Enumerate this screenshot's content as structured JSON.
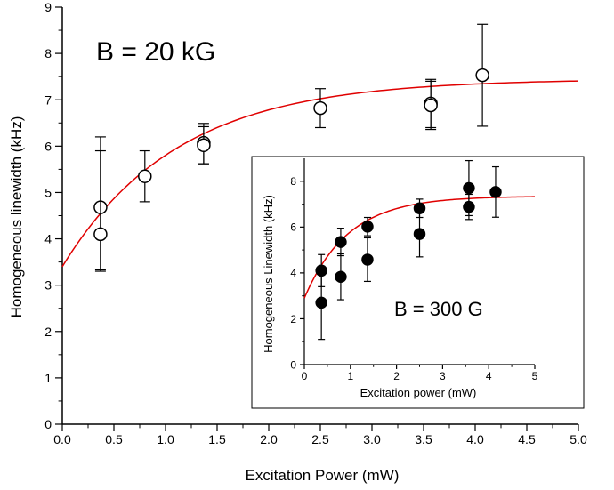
{
  "chart_data": [
    {
      "type": "scatter",
      "xlabel": "Excitation Power (mW)",
      "ylabel": "Homogeneous linewidth (kHz)",
      "xlim": [
        0,
        5
      ],
      "ylim": [
        0,
        9
      ],
      "xticks": [
        "0.0",
        "0.5",
        "1.0",
        "1.5",
        "2.0",
        "2.5",
        "3.0",
        "3.5",
        "4.0",
        "4.5",
        "5.0"
      ],
      "yticks": [
        "0",
        "1",
        "2",
        "3",
        "4",
        "5",
        "6",
        "7",
        "8",
        "9"
      ],
      "annotation": "B = 20 kG",
      "marker": "open-circle",
      "points": [
        {
          "x": 0.37,
          "y": 4.68,
          "err_low": 1.35,
          "err_high": 1.52
        },
        {
          "x": 0.37,
          "y": 4.1,
          "err_low": 0.8,
          "err_high": 1.8
        },
        {
          "x": 0.8,
          "y": 5.35,
          "err_low": 0.55,
          "err_high": 0.55
        },
        {
          "x": 1.37,
          "y": 6.07,
          "err_low": 0.45,
          "err_high": 0.42
        },
        {
          "x": 1.37,
          "y": 6.02,
          "err_low": 0.4,
          "err_high": 0.4
        },
        {
          "x": 2.5,
          "y": 6.82,
          "err_low": 0.42,
          "err_high": 0.42
        },
        {
          "x": 3.57,
          "y": 6.92,
          "err_low": 0.52,
          "err_high": 0.52
        },
        {
          "x": 3.57,
          "y": 6.88,
          "err_low": 0.52,
          "err_high": 0.52
        },
        {
          "x": 4.07,
          "y": 7.53,
          "err_low": 1.1,
          "err_high": 1.1
        }
      ],
      "fit": {
        "color": "#e00000",
        "x_range": [
          0,
          5
        ],
        "y0": 3.4,
        "yinf": 7.45,
        "rate": 0.9
      }
    },
    {
      "type": "scatter",
      "xlabel": "Excitation power (mW)",
      "ylabel": "Homogeneous Linewidth (kHz)",
      "xlim": [
        0,
        5
      ],
      "ylim": [
        0,
        9
      ],
      "xticks": [
        "0",
        "1",
        "2",
        "3",
        "4",
        "5"
      ],
      "yticks": [
        "0",
        "2",
        "4",
        "6",
        "8"
      ],
      "annotation": "B = 300 G",
      "marker": "filled-circle",
      "points": [
        {
          "x": 0.37,
          "y": 4.1,
          "err_low": 0.7,
          "err_high": 0.7
        },
        {
          "x": 0.37,
          "y": 2.7,
          "err_low": 1.6,
          "err_high": 1.6
        },
        {
          "x": 0.79,
          "y": 5.35,
          "err_low": 0.6,
          "err_high": 0.6
        },
        {
          "x": 0.79,
          "y": 3.83,
          "err_low": 1.0,
          "err_high": 1.0
        },
        {
          "x": 1.37,
          "y": 6.02,
          "err_low": 0.4,
          "err_high": 0.4
        },
        {
          "x": 1.37,
          "y": 4.58,
          "err_low": 0.95,
          "err_high": 0.95
        },
        {
          "x": 2.5,
          "y": 6.82,
          "err_low": 0.4,
          "err_high": 0.4
        },
        {
          "x": 2.5,
          "y": 5.7,
          "err_low": 1.0,
          "err_high": 1.0
        },
        {
          "x": 3.57,
          "y": 7.7,
          "err_low": 1.2,
          "err_high": 1.2
        },
        {
          "x": 3.57,
          "y": 6.88,
          "err_low": 0.55,
          "err_high": 0.55
        },
        {
          "x": 4.15,
          "y": 7.53,
          "err_low": 1.1,
          "err_high": 1.1
        }
      ],
      "fit": {
        "color": "#e00000",
        "x_range": [
          0,
          5
        ],
        "y0": 2.9,
        "yinf": 7.35,
        "rate": 1.05
      }
    }
  ]
}
